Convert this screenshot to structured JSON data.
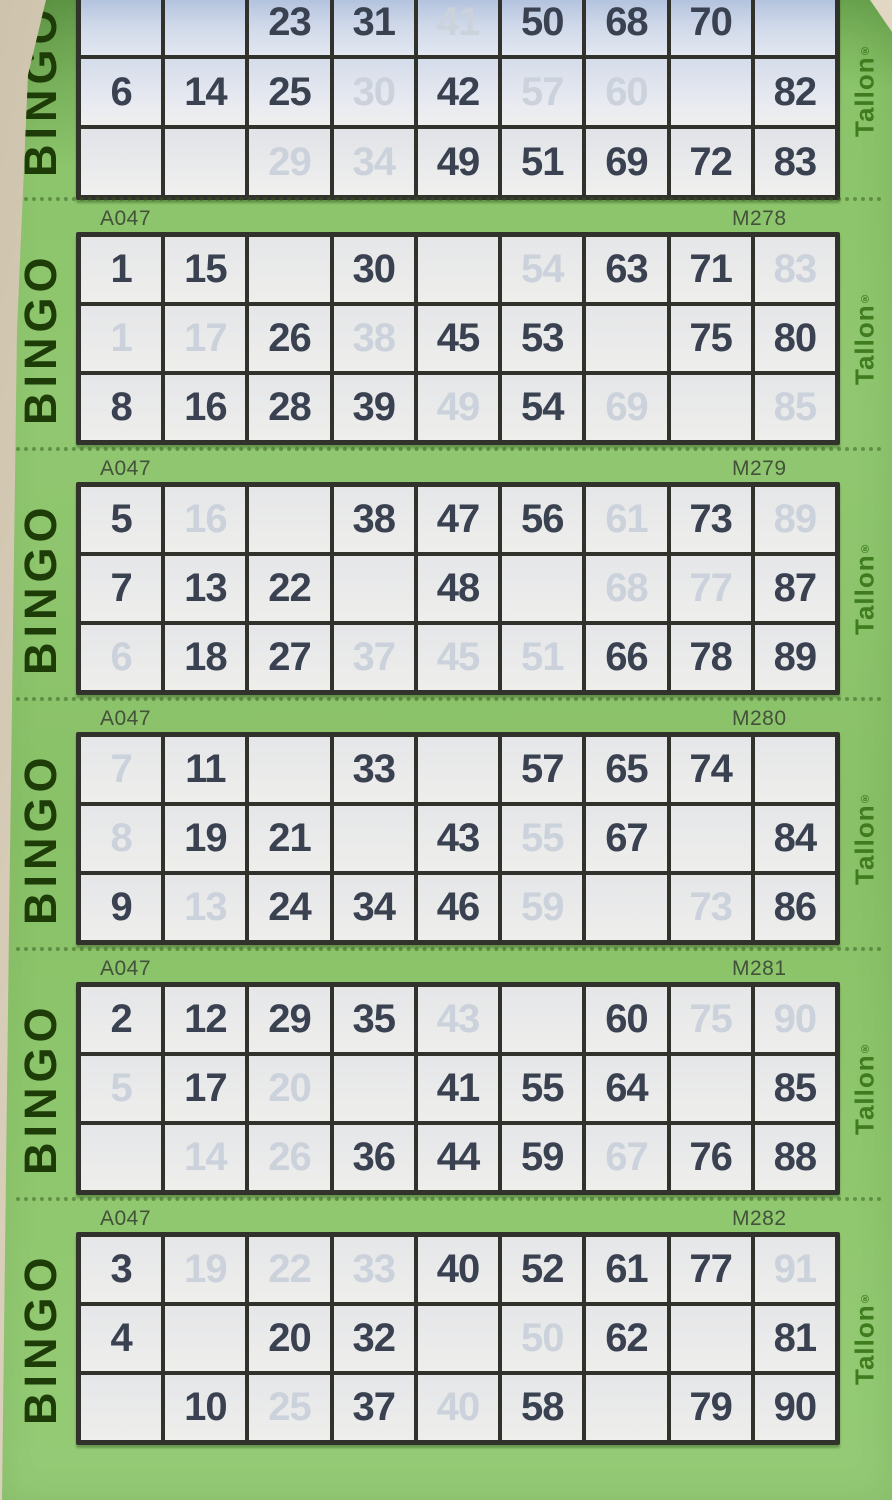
{
  "brand": {
    "left_label": "BINGO",
    "right_label": "Tallon",
    "right_mark": "®"
  },
  "book_serial": "A047",
  "colors": {
    "pad_green": "#8bc46a",
    "cell_bg": "#ebebec",
    "grid_line": "#31322b",
    "number_ink": "#3a4150",
    "ghost_ink": "#cbd2db",
    "bingo_label": "#1e3c08",
    "tallon_label": "#3e7c1e",
    "desk_beige": "#ddd3be"
  },
  "note": "cells prefixed with ~ are faint show-through (ghost) numbers; empty string = blank cell",
  "tickets": [
    {
      "serial_left": "",
      "serial_right": "",
      "rows": [
        [
          "",
          "",
          "23",
          "31",
          "~41",
          "50",
          "68",
          "70",
          ""
        ],
        [
          "6",
          "14",
          "25",
          "~30",
          "42",
          "~57",
          "~60",
          "",
          "82"
        ],
        [
          "",
          "",
          "~29",
          "~34",
          "49",
          "51",
          "69",
          "72",
          "83"
        ]
      ]
    },
    {
      "serial_left": "A047",
      "serial_right": "M278",
      "rows": [
        [
          "1",
          "15",
          "",
          "30",
          "",
          "~54",
          "63",
          "71",
          "~83"
        ],
        [
          "~1",
          "~17",
          "26",
          "~38",
          "45",
          "53",
          "",
          "75",
          "80"
        ],
        [
          "8",
          "16",
          "28",
          "39",
          "~49",
          "54",
          "~69",
          "",
          "~85"
        ]
      ]
    },
    {
      "serial_left": "A047",
      "serial_right": "M279",
      "rows": [
        [
          "5",
          "~16",
          "",
          "38",
          "47",
          "56",
          "~61",
          "73",
          "~89"
        ],
        [
          "7",
          "13",
          "22",
          "",
          "48",
          "",
          "~68",
          "~77",
          "87"
        ],
        [
          "~6",
          "18",
          "27",
          "~37",
          "~45",
          "~51",
          "66",
          "78",
          "89"
        ]
      ]
    },
    {
      "serial_left": "A047",
      "serial_right": "M280",
      "rows": [
        [
          "~7",
          "11",
          "",
          "33",
          "",
          "57",
          "65",
          "74",
          ""
        ],
        [
          "~8",
          "19",
          "21",
          "",
          "43",
          "~55",
          "67",
          "",
          "84"
        ],
        [
          "9",
          "~13",
          "24",
          "34",
          "46",
          "~59",
          "",
          "~73",
          "86"
        ]
      ]
    },
    {
      "serial_left": "A047",
      "serial_right": "M281",
      "rows": [
        [
          "2",
          "12",
          "29",
          "35",
          "~43",
          "",
          "60",
          "~75",
          "~90"
        ],
        [
          "~5",
          "17",
          "~20",
          "",
          "41",
          "55",
          "64",
          "",
          "85"
        ],
        [
          "",
          "~14",
          "~26",
          "36",
          "44",
          "59",
          "~67",
          "76",
          "88"
        ]
      ]
    },
    {
      "serial_left": "A047",
      "serial_right": "M282",
      "rows": [
        [
          "3",
          "~19",
          "~22",
          "~33",
          "40",
          "52",
          "61",
          "77",
          "~91"
        ],
        [
          "4",
          "",
          "20",
          "32",
          "",
          "~50",
          "62",
          "",
          "81"
        ],
        [
          "",
          "10",
          "~25",
          "37",
          "~40",
          "58",
          "",
          "79",
          "90"
        ]
      ]
    }
  ]
}
